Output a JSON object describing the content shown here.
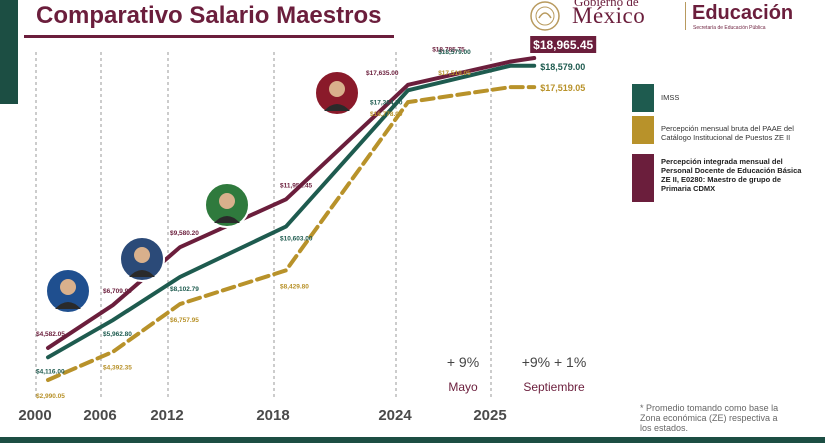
{
  "title": "Comparativo Salario Maestros",
  "logo": {
    "gob_line1": "Gobierno de",
    "gob_line2": "México",
    "edu_title": "Educación",
    "edu_sub": "Secretaría de Educación Pública"
  },
  "legend": [
    {
      "label": "IMSS",
      "color": "#1e5b4f"
    },
    {
      "label": "Percepción mensual bruta del PAAE del Catálogo Institucional de Puestos ZE II",
      "color": "#b8922a"
    },
    {
      "label": "Percepción integrada mensual del Personal Docente de Educación Básica ZE II, E0280: Maestro de grupo de Primaria CDMX",
      "color": "#6b1e3c"
    }
  ],
  "increases": [
    {
      "pct": "+ 9%",
      "when": "Mayo"
    },
    {
      "pct": "+9% + 1%",
      "when": "Septiembre"
    }
  ],
  "note": "* Promedio tomando como base la Zona económica (ZE) respectiva a los estados.",
  "chart_data": {
    "type": "line",
    "title": "Comparativo Salario Maestros",
    "categories": [
      "2000",
      "2006",
      "2012",
      "2018",
      "2024",
      "2025"
    ],
    "series": [
      {
        "name": "Percepción integrada mensual del Personal Docente de Educación Básica ZE II, E0280: Maestro de grupo de Primaria CDMX",
        "color": "#6b1e3c",
        "points": [
          {
            "x": 2000,
            "y": 4582.05,
            "label": "$4,582.05"
          },
          {
            "x": 2006,
            "y": 6709.9,
            "label": "$6,709.90"
          },
          {
            "x": 2012,
            "y": 9580.2,
            "label": "$9,580.20"
          },
          {
            "x": 2018,
            "y": 11952.45,
            "label": "$11,952.45"
          },
          {
            "x": 2024,
            "y": 17635.0,
            "label": "$17,635.00"
          },
          {
            "x": 2025.3,
            "y": 18785.75,
            "label": "$18,785.75"
          },
          {
            "x": 2026.3,
            "y": 18965.45,
            "label": "$18,965.45"
          }
        ]
      },
      {
        "name": "IMSS",
        "color": "#1e5b4f",
        "points": [
          {
            "x": 2000,
            "y": 4116.0,
            "label": "$4,116.00"
          },
          {
            "x": 2006,
            "y": 5962.8,
            "label": "$5,962.80"
          },
          {
            "x": 2012,
            "y": 8102.79,
            "label": "$8,102.79"
          },
          {
            "x": 2018,
            "y": 10603.0,
            "label": "$10,603.00"
          },
          {
            "x": 2024,
            "y": 17364.0,
            "label": "$17,364.00"
          },
          {
            "x": 2025.3,
            "y": 18579.0,
            "label": "$18,579.00"
          },
          {
            "x": 2026.3,
            "y": 18579.0,
            "label": "$18,579.00"
          }
        ]
      },
      {
        "name": "Percepción mensual bruta del PAAE del Catálogo Institucional de Puestos ZE II",
        "color": "#b8922a",
        "points": [
          {
            "x": 2000,
            "y": 2990.05,
            "label": "$2,990.05"
          },
          {
            "x": 2006,
            "y": 4392.35,
            "label": "$4,392.35"
          },
          {
            "x": 2012,
            "y": 6757.95,
            "label": "$6,757.95"
          },
          {
            "x": 2018,
            "y": 8429.8,
            "label": "$8,429.80"
          },
          {
            "x": 2024,
            "y": 16778.0,
            "label": "$16,778.00"
          },
          {
            "x": 2025.3,
            "y": 17519.05,
            "label": "$17,519.05"
          },
          {
            "x": 2026.3,
            "y": 17519.05,
            "label": "$17,519.05"
          }
        ]
      }
    ],
    "grid": "vertical dashed lines at each year",
    "legend_position": "right"
  }
}
